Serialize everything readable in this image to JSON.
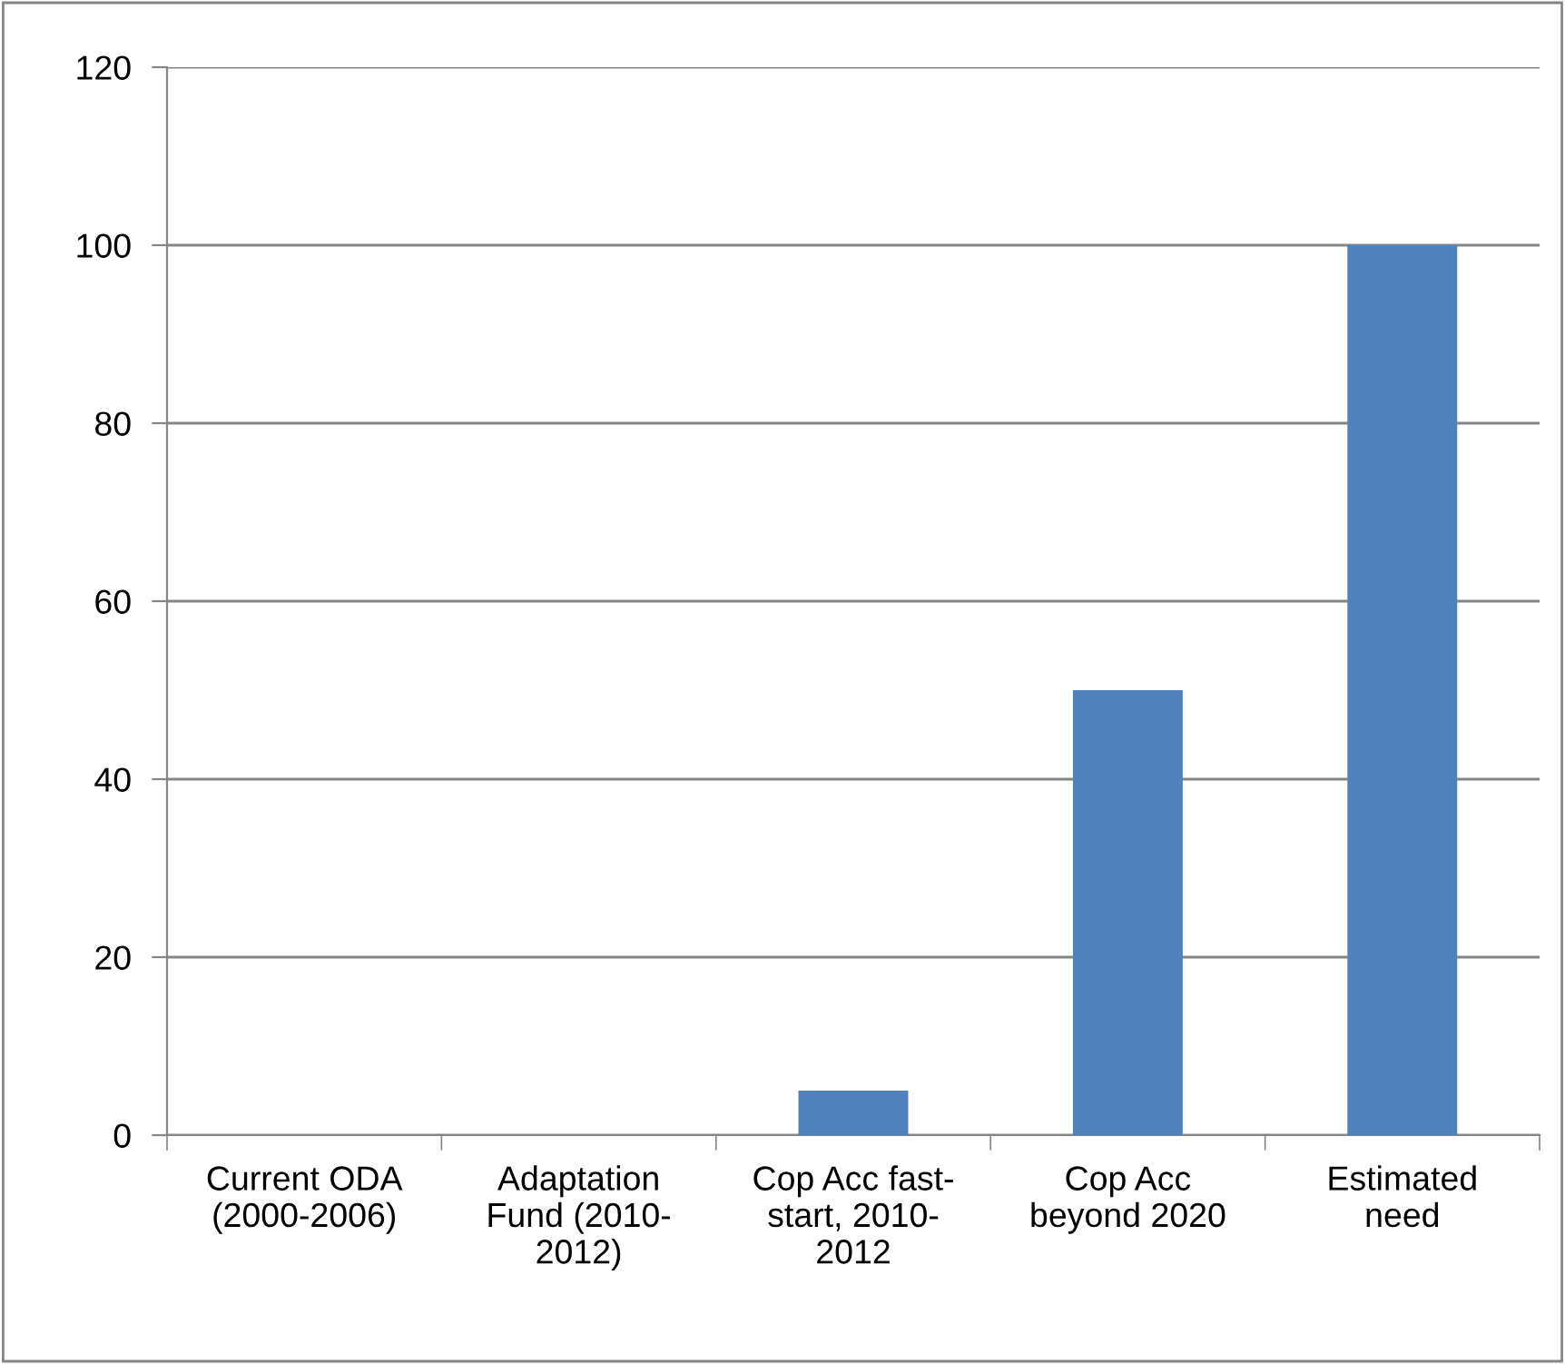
{
  "chart_data": {
    "type": "bar",
    "categories": [
      "Current ODA\n(2000-2006)",
      "Adaptation\nFund (2010-\n2012)",
      "Cop Acc fast-\nstart, 2010-\n2012",
      "Cop Acc\nbeyond 2020",
      "Estimated\nneed"
    ],
    "values": [
      0,
      0,
      5,
      50,
      100
    ],
    "color": "#4f81bd",
    "ylim": [
      0,
      120
    ],
    "yticks": [
      0,
      20,
      40,
      60,
      80,
      100,
      120
    ],
    "grid": "y"
  }
}
